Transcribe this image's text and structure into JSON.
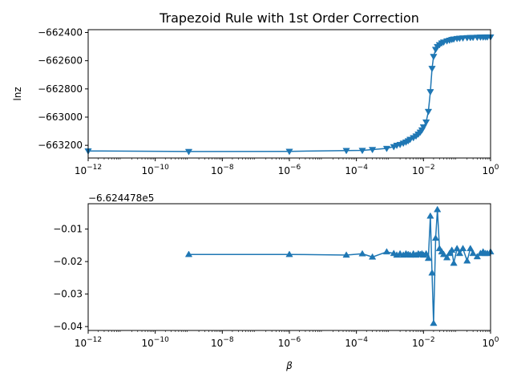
{
  "chart_data": [
    {
      "type": "line",
      "title": "Trapezoid Rule with 1st Order Correction",
      "ylabel": "lnz",
      "xlabel": "",
      "xscale": "log",
      "xlim": [
        1e-12,
        1
      ],
      "ylim": [
        -663290,
        -662380
      ],
      "x_ticks": [
        "10^-12",
        "10^-10",
        "10^-8",
        "10^-6",
        "10^-4",
        "10^-2",
        "10^0"
      ],
      "y_ticks": [
        "−663200",
        "−663000",
        "−662800",
        "−662600",
        "−662400"
      ],
      "y_tick_values": [
        -663200,
        -663000,
        -662800,
        -662600,
        -662400
      ],
      "marker": "triangle-down",
      "color": "#1f77b4",
      "grid": false,
      "series": [
        {
          "x": [
            1e-12,
            1e-09,
            1e-06,
            5e-05,
            0.00015,
            0.0003,
            0.0008,
            0.0013,
            0.0016,
            0.002,
            0.0025,
            0.003,
            0.0035,
            0.004,
            0.005,
            0.006,
            0.007,
            0.008,
            0.009,
            0.01,
            0.012,
            0.014,
            0.016,
            0.018,
            0.02,
            0.023,
            0.026,
            0.03,
            0.035,
            0.04,
            0.05,
            0.06,
            0.07,
            0.08,
            0.1,
            0.12,
            0.15,
            0.2,
            0.25,
            0.3,
            0.4,
            0.5,
            0.6,
            0.7,
            0.8,
            1.0
          ],
          "values": [
            -663240,
            -663244,
            -663243,
            -663237,
            -663236,
            -663230,
            -663222,
            -663210,
            -663200,
            -663194,
            -663185,
            -663177,
            -663168,
            -663158,
            -663146,
            -663134,
            -663121,
            -663107,
            -663091,
            -663070,
            -663035,
            -662960,
            -662820,
            -662655,
            -662570,
            -662520,
            -662500,
            -662487,
            -662475,
            -662468,
            -662460,
            -662455,
            -662450,
            -662447,
            -662443,
            -662441,
            -662439,
            -662437,
            -662436,
            -662435,
            -662434,
            -662433,
            -662433,
            -662432,
            -662432,
            -662432
          ]
        }
      ]
    },
    {
      "type": "line",
      "title": "",
      "ylabel": "",
      "xlabel": "β",
      "xscale": "log",
      "xlim": [
        1e-12,
        1
      ],
      "ylim": [
        -0.0412,
        -0.0022
      ],
      "offset_text": "−6.624478e5",
      "x_ticks": [
        "10^-12",
        "10^-10",
        "10^-8",
        "10^-6",
        "10^-4",
        "10^-2",
        "10^0"
      ],
      "y_ticks": [
        "−0.04",
        "−0.03",
        "−0.02",
        "−0.01"
      ],
      "y_tick_values": [
        -0.04,
        -0.03,
        -0.02,
        -0.01
      ],
      "marker": "triangle-up",
      "color": "#1f77b4",
      "grid": false,
      "series": [
        {
          "x": [
            1e-09,
            1e-06,
            5e-05,
            0.00015,
            0.0003,
            0.0008,
            0.0013,
            0.0016,
            0.002,
            0.0025,
            0.003,
            0.0035,
            0.004,
            0.005,
            0.006,
            0.007,
            0.008,
            0.009,
            0.01,
            0.012,
            0.014,
            0.016,
            0.018,
            0.02,
            0.023,
            0.026,
            0.03,
            0.035,
            0.04,
            0.05,
            0.06,
            0.07,
            0.08,
            0.1,
            0.12,
            0.15,
            0.2,
            0.25,
            0.3,
            0.4,
            0.5,
            0.6,
            0.7,
            0.8,
            1.0
          ],
          "values": [
            -0.0178,
            -0.0178,
            -0.018,
            -0.0176,
            -0.0186,
            -0.017,
            -0.0175,
            -0.018,
            -0.0176,
            -0.018,
            -0.0176,
            -0.0178,
            -0.018,
            -0.0176,
            -0.018,
            -0.0176,
            -0.0178,
            -0.0176,
            -0.018,
            -0.0176,
            -0.019,
            -0.006,
            -0.0235,
            -0.039,
            -0.0128,
            -0.004,
            -0.016,
            -0.017,
            -0.0178,
            -0.0188,
            -0.0175,
            -0.0165,
            -0.0205,
            -0.016,
            -0.0175,
            -0.016,
            -0.0198,
            -0.016,
            -0.0175,
            -0.0185,
            -0.0175,
            -0.017,
            -0.0175,
            -0.0175,
            -0.017
          ]
        }
      ]
    }
  ]
}
